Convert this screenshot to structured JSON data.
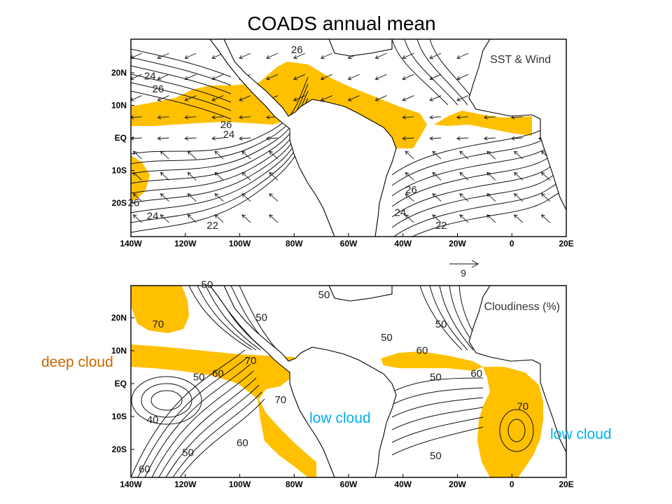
{
  "figure": {
    "title": "COADS annual mean",
    "shade_color": "#FFC000",
    "annotation_deep_color": "#CC6600",
    "annotation_low_color": "#00B0F0"
  },
  "x_ticks": [
    "140W",
    "120W",
    "100W",
    "80W",
    "60W",
    "40W",
    "20W",
    "0",
    "20E"
  ],
  "y_ticks": [
    "20N",
    "10N",
    "EQ",
    "10S",
    "20S"
  ],
  "panels": {
    "sst": {
      "label": "SST & Wind",
      "contour_labels": [
        {
          "text": "26",
          "lon": -79,
          "lat": 26
        },
        {
          "text": "24",
          "lon": -133,
          "lat": 18
        },
        {
          "text": "26",
          "lon": -130,
          "lat": 14
        },
        {
          "text": "26",
          "lon": -105,
          "lat": 3
        },
        {
          "text": "24",
          "lon": -104,
          "lat": 0
        },
        {
          "text": "26",
          "lon": -139,
          "lat": -21
        },
        {
          "text": "24",
          "lon": -132,
          "lat": -25
        },
        {
          "text": "22",
          "lon": -110,
          "lat": -28
        },
        {
          "text": "26",
          "lon": -37,
          "lat": -17
        },
        {
          "text": "24",
          "lon": -41,
          "lat": -24
        },
        {
          "text": "22",
          "lon": -26,
          "lat": -28
        }
      ],
      "vector_scale": "9"
    },
    "cloud": {
      "label": "Cloudiness (%)",
      "contour_labels": [
        {
          "text": "70",
          "lon": -130,
          "lat": 17
        },
        {
          "text": "50",
          "lon": -112,
          "lat": 29
        },
        {
          "text": "50",
          "lon": -92,
          "lat": 19
        },
        {
          "text": "50",
          "lon": -69,
          "lat": 26
        },
        {
          "text": "70",
          "lon": -96,
          "lat": 6
        },
        {
          "text": "50",
          "lon": -115,
          "lat": 1
        },
        {
          "text": "60",
          "lon": -108,
          "lat": 2
        },
        {
          "text": "70",
          "lon": -85,
          "lat": -6
        },
        {
          "text": "40",
          "lon": -132,
          "lat": -12
        },
        {
          "text": "60",
          "lon": -99,
          "lat": -19
        },
        {
          "text": "50",
          "lon": -119,
          "lat": -22
        },
        {
          "text": "60",
          "lon": -135,
          "lat": -27
        },
        {
          "text": "50",
          "lon": -46,
          "lat": 13
        },
        {
          "text": "60",
          "lon": -33,
          "lat": 9
        },
        {
          "text": "50",
          "lon": -26,
          "lat": 17
        },
        {
          "text": "50",
          "lon": -28,
          "lat": 1
        },
        {
          "text": "60",
          "lon": -13,
          "lat": 2
        },
        {
          "text": "70",
          "lon": 4,
          "lat": -8
        },
        {
          "text": "50",
          "lon": -28,
          "lat": -23
        }
      ]
    }
  },
  "annotations": {
    "deep_cloud": "deep cloud",
    "low_cloud_sa": "low cloud",
    "low_cloud_africa": "low cloud"
  }
}
